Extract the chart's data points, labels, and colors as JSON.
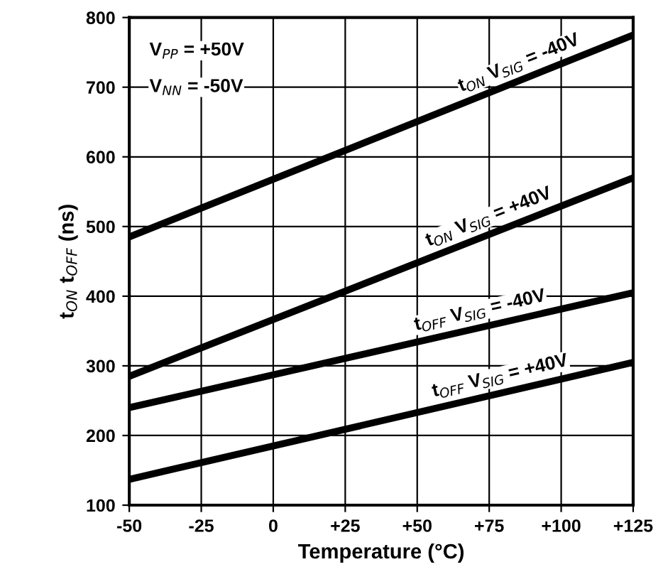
{
  "chart_data": {
    "type": "line",
    "xlabel": "Temperature (°C)",
    "ylabel": "t$_{ON}$ t$_{OFF}$ (ns)",
    "annotations": [
      "V$_{PP}$ = +50V",
      "V$_{NN}$ = -50V"
    ],
    "x": [
      -50,
      125
    ],
    "series": [
      {
        "name": "t$_{ON}$ V$_{SIG}$ = -40V",
        "color": "#000000",
        "values": [
          485,
          775
        ]
      },
      {
        "name": "t$_{ON}$ V$_{SIG}$ = +40V",
        "color": "#000000",
        "values": [
          285,
          570
        ]
      },
      {
        "name": "t$_{OFF}$ V$_{SIG}$ = -40V",
        "color": "#000000",
        "values": [
          240,
          405
        ]
      },
      {
        "name": "t$_{OFF}$ V$_{SIG}$ = +40V",
        "color": "#000000",
        "values": [
          137,
          305
        ]
      }
    ],
    "xlim": [
      -50,
      125
    ],
    "xticks": [
      -50,
      -25,
      0,
      {
        "value": 25,
        "label": "+25"
      },
      {
        "value": 50,
        "label": "+50"
      },
      {
        "value": 75,
        "label": "+75"
      },
      {
        "value": 100,
        "label": "+100"
      },
      {
        "value": 125,
        "label": "+125"
      }
    ],
    "ylim": [
      100,
      800
    ],
    "yticks": [
      100,
      200,
      300,
      400,
      500,
      600,
      700,
      800
    ],
    "grid": true,
    "legend": false,
    "marker": "none",
    "line_style": "solid"
  }
}
